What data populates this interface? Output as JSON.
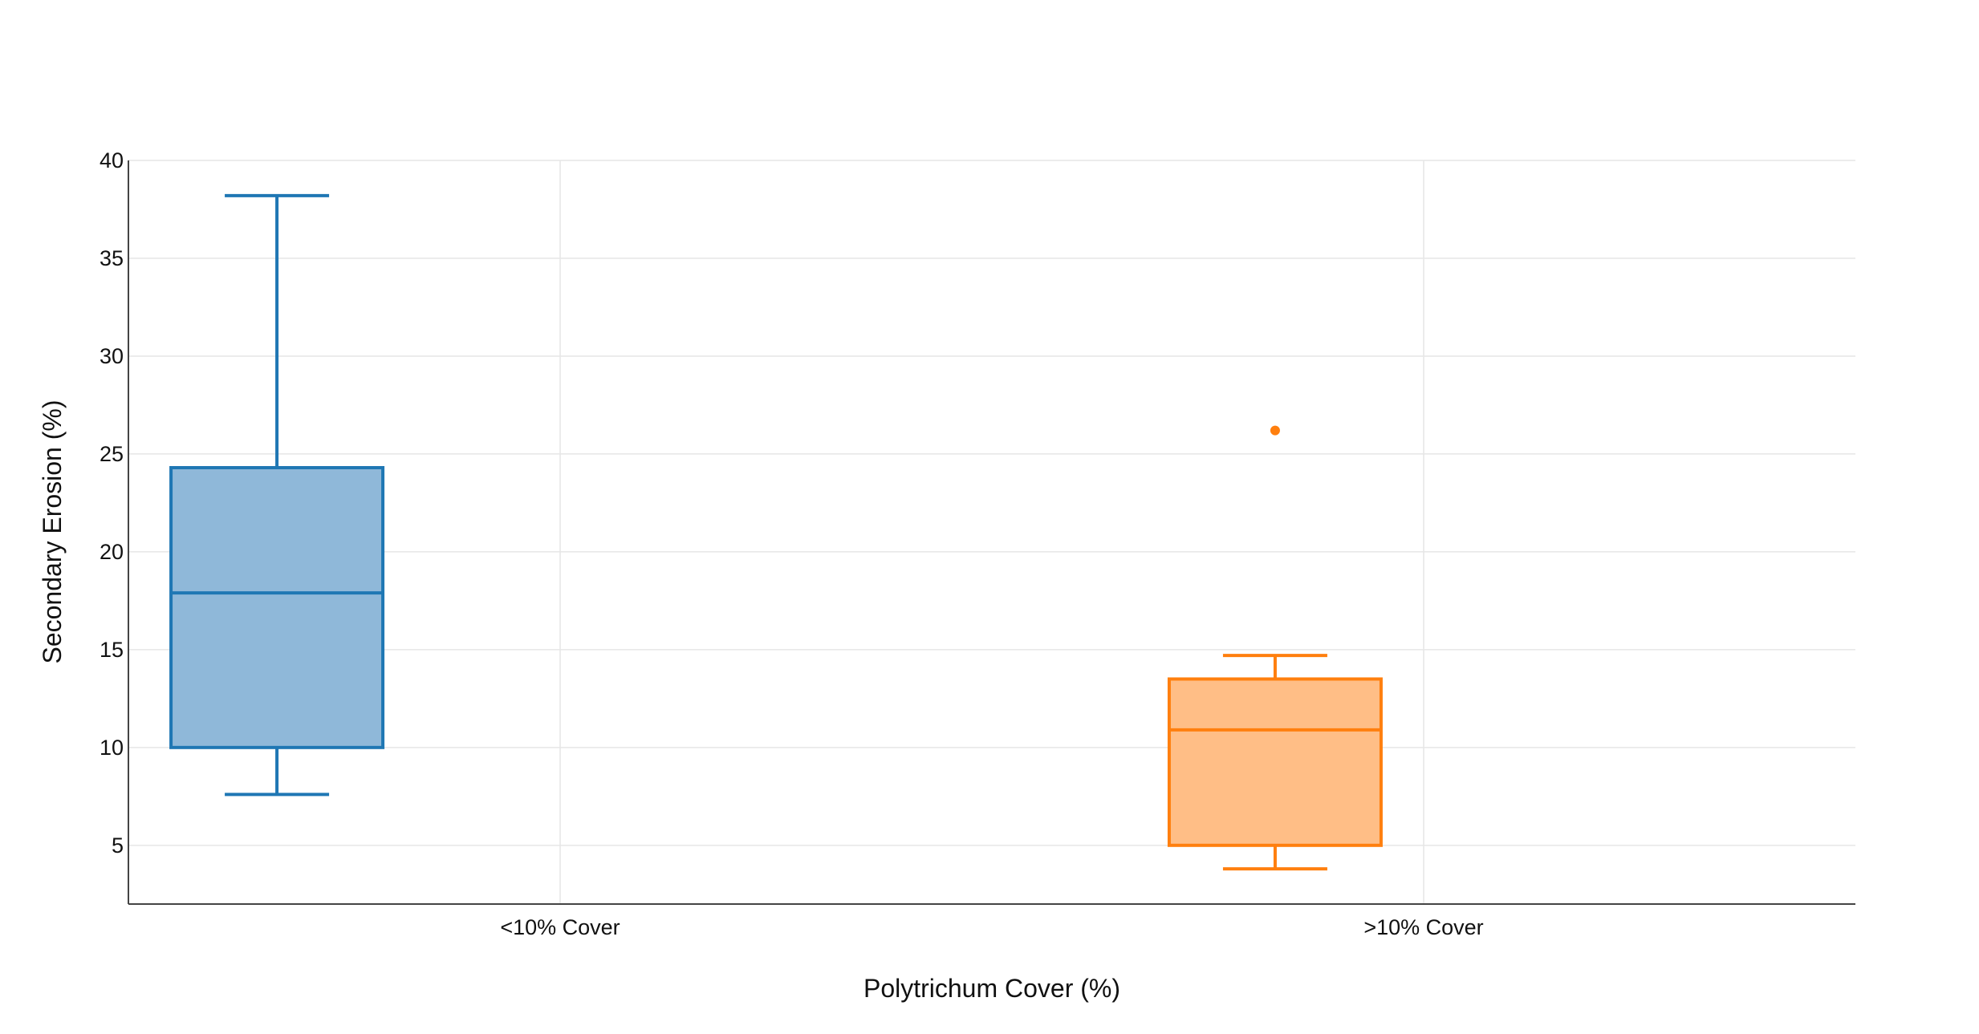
{
  "chart_data": {
    "type": "box",
    "xlabel": "Polytrichum Cover (%)",
    "ylabel": "Secondary Erosion (%)",
    "ylim": [
      2,
      40
    ],
    "yticks": [
      5,
      10,
      15,
      20,
      25,
      30,
      35,
      40
    ],
    "grid": true,
    "categories": [
      "<10% Cover",
      ">10% Cover"
    ],
    "boxes": [
      {
        "category": "<10% Cover",
        "whisker_low": 7.6,
        "q1": 10.0,
        "median": 17.9,
        "q3": 24.3,
        "whisker_high": 38.2,
        "outliers": [],
        "stroke": "#1f77b4",
        "fill": "#8fb8d9"
      },
      {
        "category": ">10% Cover",
        "whisker_low": 3.8,
        "q1": 5.0,
        "median": 10.9,
        "q3": 13.5,
        "whisker_high": 14.7,
        "outliers": [
          26.2
        ],
        "stroke": "#ff7f0e",
        "fill": "#ffbe86"
      }
    ]
  }
}
